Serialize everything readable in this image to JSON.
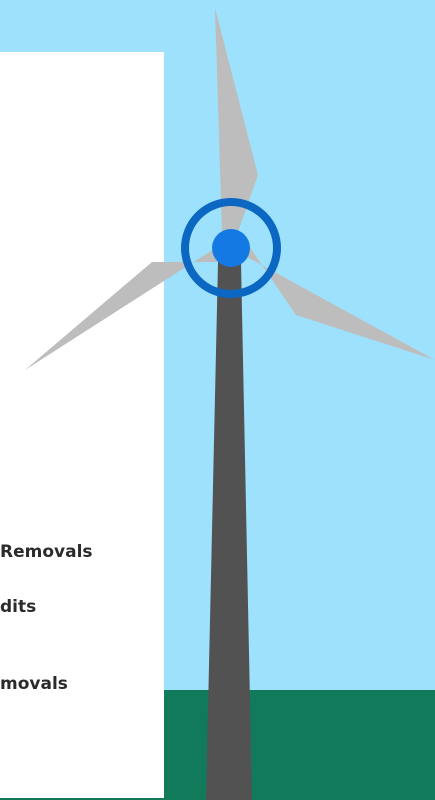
{
  "colors": {
    "sky": "#9ee1fd",
    "ground": "#107a5b",
    "panel": "#ffffff",
    "tower": "#525252",
    "blade": "#bdbdbd",
    "hub_ring": "#0c67c3",
    "hub": "#1479e3"
  },
  "labels": {
    "line1": "Removals",
    "line2": "dits",
    "line3": "movals"
  },
  "icons": {
    "turbine": "wind-turbine-icon"
  }
}
